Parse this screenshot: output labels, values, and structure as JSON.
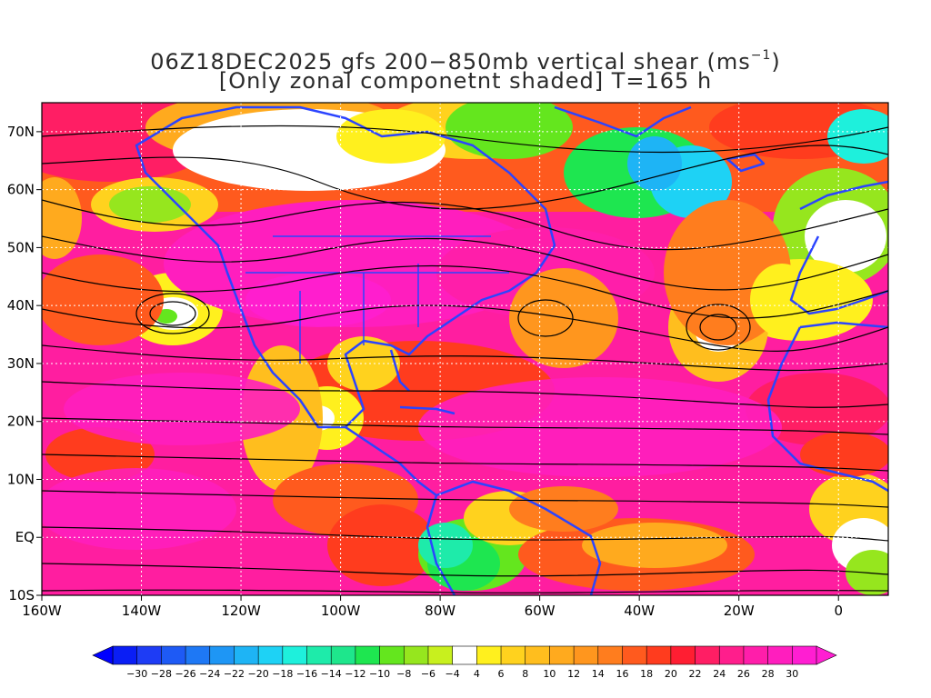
{
  "title": {
    "line1_main": "06Z18DEC2025 gfs 200−850mb vertical shear (ms",
    "line1_sup": "−1",
    "line1_end": ")",
    "line2": "[Only zonal componetnt shaded] T=165 h"
  },
  "map": {
    "lon_range": [
      -160,
      10
    ],
    "lat_range": [
      -10,
      75
    ],
    "grid": "dotted",
    "y_ticks": [
      {
        "lat": 70,
        "label": "70N"
      },
      {
        "lat": 60,
        "label": "60N"
      },
      {
        "lat": 50,
        "label": "50N"
      },
      {
        "lat": 40,
        "label": "40N"
      },
      {
        "lat": 30,
        "label": "30N"
      },
      {
        "lat": 20,
        "label": "20N"
      },
      {
        "lat": 10,
        "label": "10N"
      },
      {
        "lat": 0,
        "label": "EQ"
      },
      {
        "lat": -10,
        "label": "10S"
      }
    ],
    "x_ticks": [
      {
        "lon": -160,
        "label": "160W"
      },
      {
        "lon": -140,
        "label": "140W"
      },
      {
        "lon": -120,
        "label": "120W"
      },
      {
        "lon": -100,
        "label": "100W"
      },
      {
        "lon": -80,
        "label": "80W"
      },
      {
        "lon": -60,
        "label": "60W"
      },
      {
        "lon": -40,
        "label": "40W"
      },
      {
        "lon": -20,
        "label": "20W"
      },
      {
        "lon": 0,
        "label": "0"
      }
    ]
  },
  "colorbar": {
    "tick_labels": [
      "−30",
      "−28",
      "−26",
      "−24",
      "−22",
      "−20",
      "−18",
      "−16",
      "−14",
      "−12",
      "−10",
      "−8",
      "−6",
      "−4",
      "4",
      "6",
      "8",
      "10",
      "12",
      "14",
      "16",
      "18",
      "20",
      "22",
      "24",
      "26",
      "28",
      "30"
    ],
    "colors": [
      "#0a1ef5",
      "#1e3cf5",
      "#1e5af5",
      "#1e78f5",
      "#1e96f5",
      "#1eb4f5",
      "#1ed2f5",
      "#1ef0dc",
      "#1eebaa",
      "#1ee68c",
      "#1ee650",
      "#64e61e",
      "#96e61e",
      "#c8f01e",
      "#ffffff",
      "#fff01e",
      "#ffd21e",
      "#ffbe1e",
      "#ffaa1e",
      "#ff961e",
      "#ff7d1e",
      "#ff5a1e",
      "#ff3c1e",
      "#ff1e32",
      "#ff1e64",
      "#ff1e8c",
      "#ff1eaa",
      "#ff1ebe",
      "#ff1ed2"
    ]
  }
}
